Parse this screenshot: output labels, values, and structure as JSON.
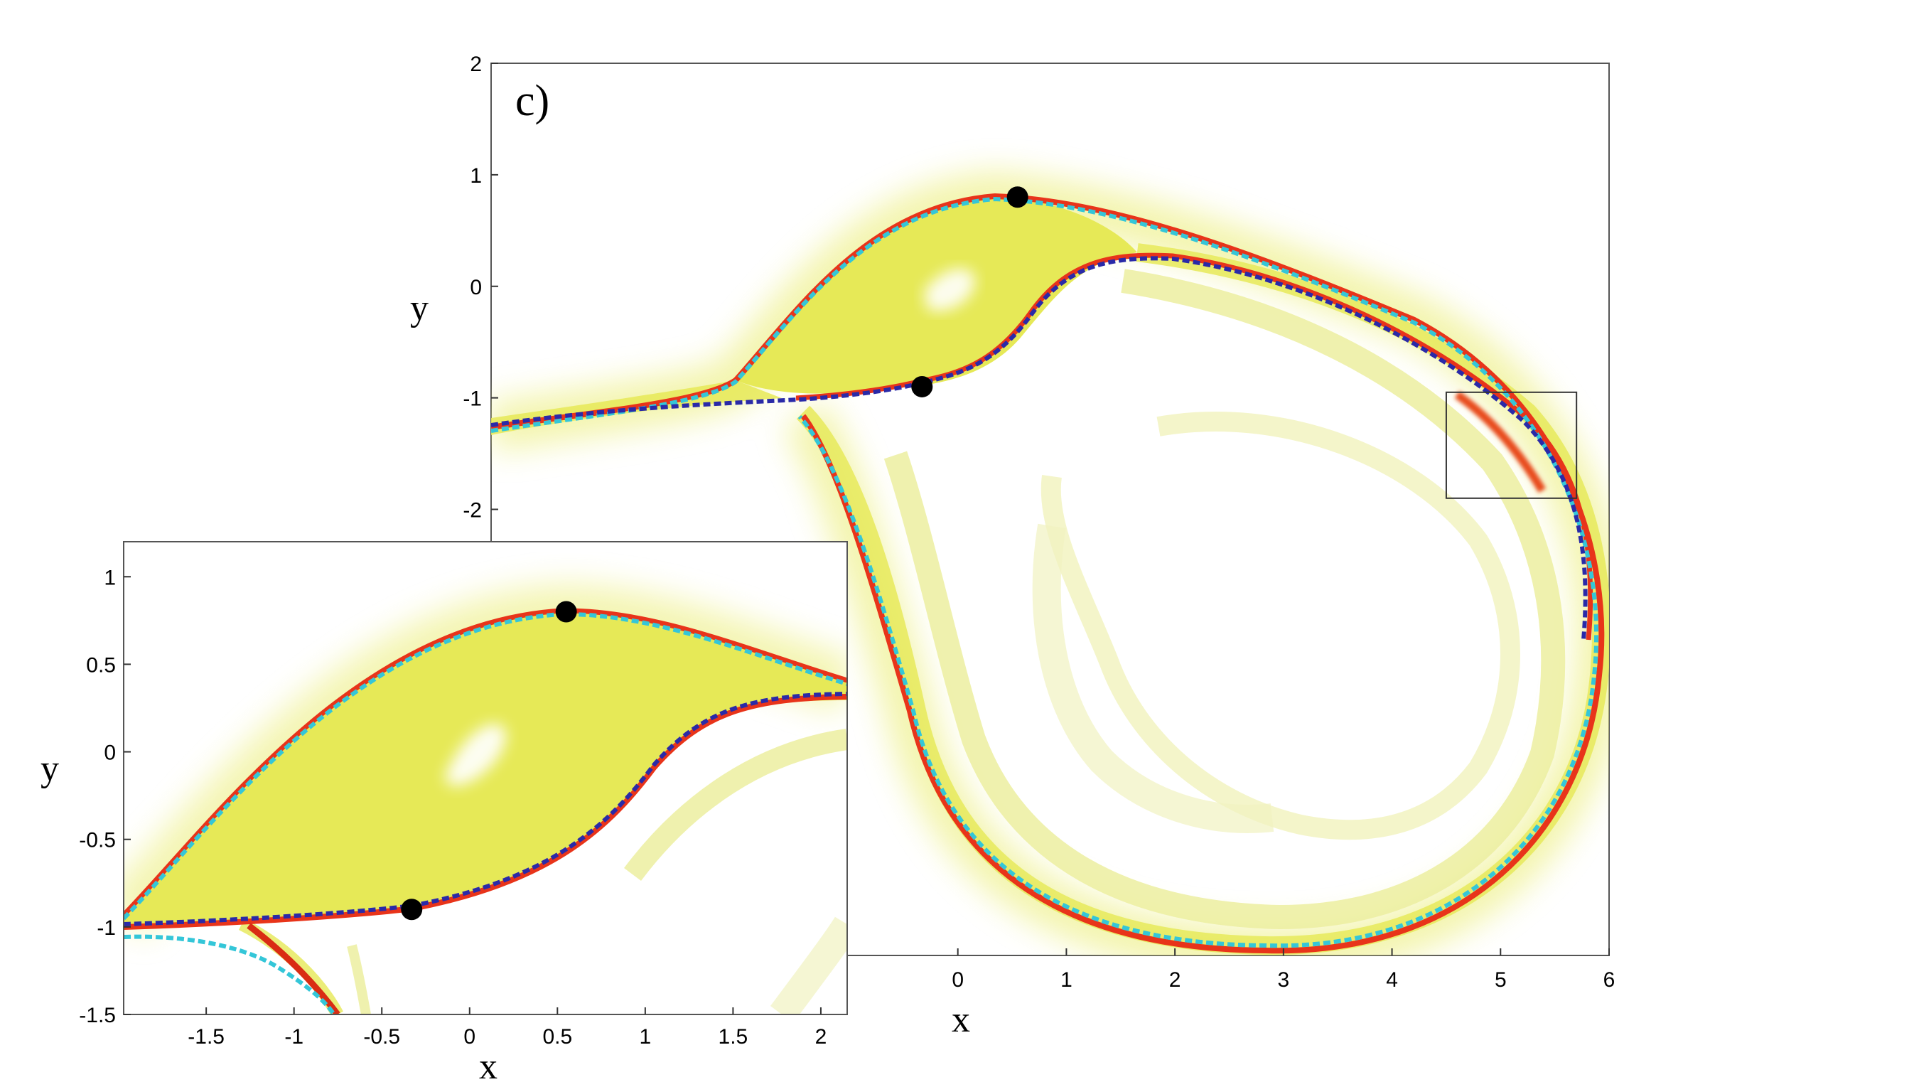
{
  "chart_data": [
    {
      "type": "heatmap",
      "panel_label": "c)",
      "xlabel": "x",
      "ylabel": "y",
      "xlim": [
        -4.3,
        6
      ],
      "ylim": [
        -6,
        2
      ],
      "xticks": [
        "0",
        "1",
        "2",
        "3",
        "4",
        "5",
        "6"
      ],
      "yticks": [
        "2",
        "1",
        "0",
        "-1",
        "-2"
      ],
      "points": [
        {
          "x": 0.55,
          "y": 0.8
        },
        {
          "x": -0.33,
          "y": -0.9
        }
      ],
      "zoom_box": {
        "x": [
          4.5,
          5.7
        ],
        "y": [
          -1.9,
          -0.95
        ]
      },
      "colors": {
        "field": "#e7e85a",
        "ridge": "#e52a10",
        "manifold_stable": "#34c6d8",
        "manifold_unstable": "#2a2aa8"
      }
    },
    {
      "type": "heatmap",
      "xlabel": "x",
      "ylabel": "y",
      "xlim": [
        -1.97,
        2.15
      ],
      "ylim": [
        -1.5,
        1.2
      ],
      "xticks": [
        "-1.5",
        "-1",
        "-0.5",
        "0",
        "0.5",
        "1",
        "1.5",
        "2"
      ],
      "yticks": [
        "1",
        "0.5",
        "0",
        "-0.5",
        "-1",
        "-1.5"
      ],
      "points": [
        {
          "x": 0.55,
          "y": 0.8
        },
        {
          "x": -0.33,
          "y": -0.9
        }
      ]
    }
  ]
}
